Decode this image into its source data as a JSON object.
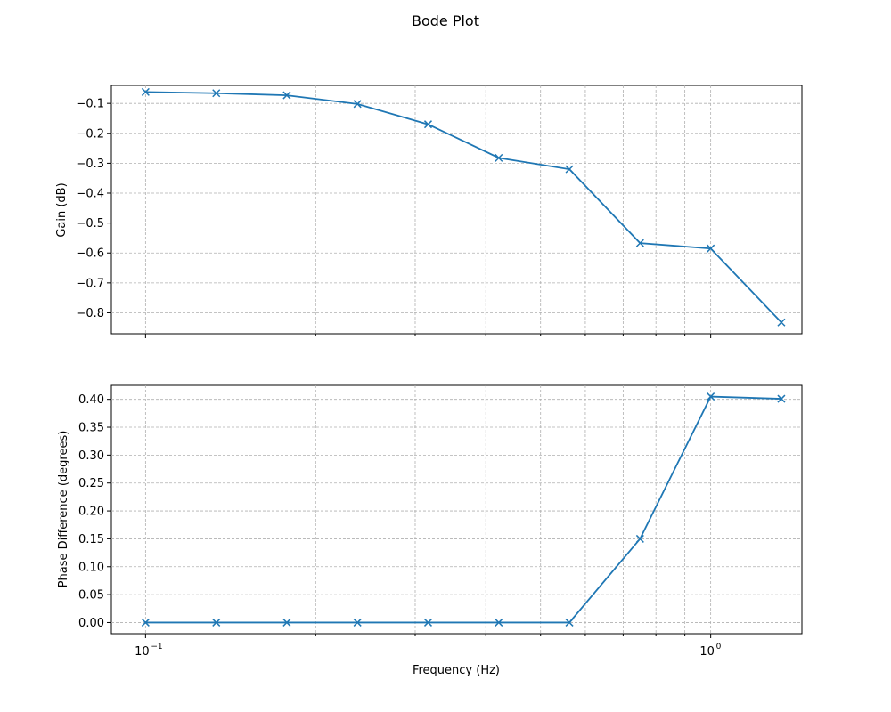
{
  "figure": {
    "title": "Bode Plot"
  },
  "chart_data": [
    {
      "type": "line",
      "title": "",
      "xlabel": "",
      "ylabel": "Gain (dB)",
      "x_scale": "log",
      "xlim": [
        0.087,
        1.45
      ],
      "ylim": [
        -0.87,
        -0.04
      ],
      "yticks": [
        -0.1,
        -0.2,
        -0.3,
        -0.4,
        -0.5,
        -0.6,
        -0.7,
        -0.8
      ],
      "ytick_labels": [
        "−0.1",
        "−0.2",
        "−0.3",
        "−0.4",
        "−0.5",
        "−0.6",
        "−0.7",
        "−0.8"
      ],
      "xtick_labels": [],
      "grid": true,
      "series": [
        {
          "marker": "x",
          "color": "#1f77b4",
          "x": [
            0.1,
            0.1334,
            0.1778,
            0.2371,
            0.3162,
            0.4217,
            0.5623,
            0.7499,
            1.0,
            1.3335
          ],
          "y": [
            -0.062,
            -0.066,
            -0.073,
            -0.102,
            -0.17,
            -0.282,
            -0.32,
            -0.567,
            -0.585,
            -0.832
          ]
        }
      ]
    },
    {
      "type": "line",
      "title": "",
      "xlabel": "Frequency (Hz)",
      "ylabel": "Phase Difference (degrees)",
      "x_scale": "log",
      "xlim": [
        0.087,
        1.45
      ],
      "ylim": [
        -0.02,
        0.425
      ],
      "yticks": [
        0.0,
        0.05,
        0.1,
        0.15,
        0.2,
        0.25,
        0.3,
        0.35,
        0.4
      ],
      "ytick_labels": [
        "0.00",
        "0.05",
        "0.10",
        "0.15",
        "0.20",
        "0.25",
        "0.30",
        "0.35",
        "0.40"
      ],
      "xtick_labels": [
        "10",
        "−1",
        "10",
        "0"
      ],
      "grid": true,
      "series": [
        {
          "marker": "x",
          "color": "#1f77b4",
          "x": [
            0.1,
            0.1334,
            0.1778,
            0.2371,
            0.3162,
            0.4217,
            0.5623,
            0.7499,
            1.0,
            1.3335
          ],
          "y": [
            0.0,
            0.0,
            0.0,
            0.0,
            0.0,
            0.0,
            0.0,
            0.15,
            0.405,
            0.401
          ]
        }
      ]
    }
  ]
}
